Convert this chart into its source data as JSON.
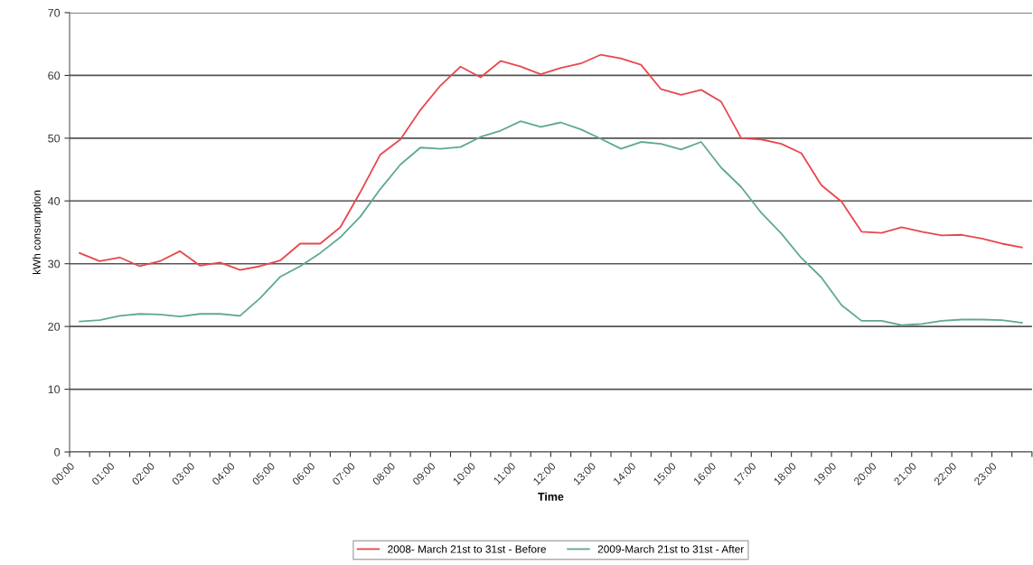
{
  "chart_data": {
    "type": "line",
    "xlabel": "Time",
    "ylabel": "kWh consumption",
    "x": [
      0.25,
      0.75,
      1.25,
      1.75,
      2.25,
      2.75,
      3.25,
      3.75,
      4.25,
      4.75,
      5.25,
      5.75,
      6.25,
      6.75,
      7.25,
      7.75,
      8.25,
      8.75,
      9.25,
      9.75,
      10.25,
      10.75,
      11.25,
      11.75,
      12.25,
      12.75,
      13.25,
      13.75,
      14.25,
      14.75,
      15.25,
      15.75,
      16.25,
      16.75,
      17.25,
      17.75,
      18.25,
      18.75,
      19.25,
      19.75,
      20.25,
      20.75,
      21.25,
      21.75,
      22.25,
      22.75,
      23.25,
      23.75
    ],
    "series": [
      {
        "name": "2008- March 21st to 31st - Before",
        "color": "#e8474f",
        "values": [
          31.7,
          30.4,
          31.0,
          29.6,
          30.4,
          32.0,
          29.7,
          30.2,
          29.0,
          29.6,
          30.5,
          33.2,
          33.2,
          35.8,
          41.4,
          47.4,
          49.8,
          54.5,
          58.4,
          61.4,
          59.7,
          62.3,
          61.4,
          60.2,
          61.2,
          61.9,
          63.3,
          62.7,
          61.7,
          57.8,
          56.9,
          57.7,
          55.8,
          50.0,
          49.8,
          49.1,
          47.6,
          42.5,
          39.9,
          35.1,
          34.9,
          35.8,
          35.1,
          34.5,
          34.6,
          34.0,
          33.2,
          32.6
        ]
      },
      {
        "name": "2009-March 21st to 31st - After",
        "color": "#5fa894",
        "values": [
          20.8,
          21.0,
          21.7,
          22.0,
          21.9,
          21.6,
          22.0,
          22.0,
          21.7,
          24.5,
          27.9,
          29.6,
          31.7,
          34.2,
          37.5,
          41.9,
          45.8,
          48.5,
          48.3,
          48.6,
          50.2,
          51.2,
          52.7,
          51.8,
          52.5,
          51.4,
          49.9,
          48.3,
          49.4,
          49.1,
          48.2,
          49.4,
          45.3,
          42.2,
          38.1,
          34.8,
          30.9,
          27.8,
          23.4,
          20.9,
          20.9,
          20.2,
          20.4,
          20.9,
          21.1,
          21.1,
          21.0,
          20.6
        ]
      }
    ],
    "xlim": [
      0,
      24
    ],
    "xticks": [
      {
        "value": 0,
        "label": "00:00"
      },
      {
        "value": 0.5,
        "label": null
      },
      {
        "value": 1,
        "label": "01:00"
      },
      {
        "value": 1.5,
        "label": null
      },
      {
        "value": 2,
        "label": "02:00"
      },
      {
        "value": 2.5,
        "label": null
      },
      {
        "value": 3,
        "label": "03:00"
      },
      {
        "value": 3.5,
        "label": null
      },
      {
        "value": 4,
        "label": "04:00"
      },
      {
        "value": 4.5,
        "label": null
      },
      {
        "value": 5,
        "label": "05:00"
      },
      {
        "value": 5.5,
        "label": null
      },
      {
        "value": 6,
        "label": "06:00"
      },
      {
        "value": 6.5,
        "label": null
      },
      {
        "value": 7,
        "label": "07:00"
      },
      {
        "value": 7.5,
        "label": null
      },
      {
        "value": 8,
        "label": "08:00"
      },
      {
        "value": 8.5,
        "label": null
      },
      {
        "value": 9,
        "label": "09:00"
      },
      {
        "value": 9.5,
        "label": null
      },
      {
        "value": 10,
        "label": "10:00"
      },
      {
        "value": 10.5,
        "label": null
      },
      {
        "value": 11,
        "label": "11:00"
      },
      {
        "value": 11.5,
        "label": null
      },
      {
        "value": 12,
        "label": "12:00"
      },
      {
        "value": 12.5,
        "label": null
      },
      {
        "value": 13,
        "label": "13:00"
      },
      {
        "value": 13.5,
        "label": null
      },
      {
        "value": 14,
        "label": "14:00"
      },
      {
        "value": 14.5,
        "label": null
      },
      {
        "value": 15,
        "label": "15:00"
      },
      {
        "value": 15.5,
        "label": null
      },
      {
        "value": 16,
        "label": "16:00"
      },
      {
        "value": 16.5,
        "label": null
      },
      {
        "value": 17,
        "label": "17:00"
      },
      {
        "value": 17.5,
        "label": null
      },
      {
        "value": 18,
        "label": "18:00"
      },
      {
        "value": 18.5,
        "label": null
      },
      {
        "value": 19,
        "label": "19:00"
      },
      {
        "value": 19.5,
        "label": null
      },
      {
        "value": 20,
        "label": "20:00"
      },
      {
        "value": 20.5,
        "label": null
      },
      {
        "value": 21,
        "label": "21:00"
      },
      {
        "value": 21.5,
        "label": null
      },
      {
        "value": 22,
        "label": "22:00"
      },
      {
        "value": 22.5,
        "label": null
      },
      {
        "value": 23,
        "label": "23:00"
      },
      {
        "value": 23.5,
        "label": null
      },
      {
        "value": 24,
        "label": null
      }
    ],
    "ylim": [
      0,
      70
    ],
    "yticks": [
      0,
      10,
      20,
      30,
      40,
      50,
      60,
      70
    ],
    "grid": "y",
    "legend": "bottom",
    "marker": "none",
    "line_style": "solid"
  }
}
